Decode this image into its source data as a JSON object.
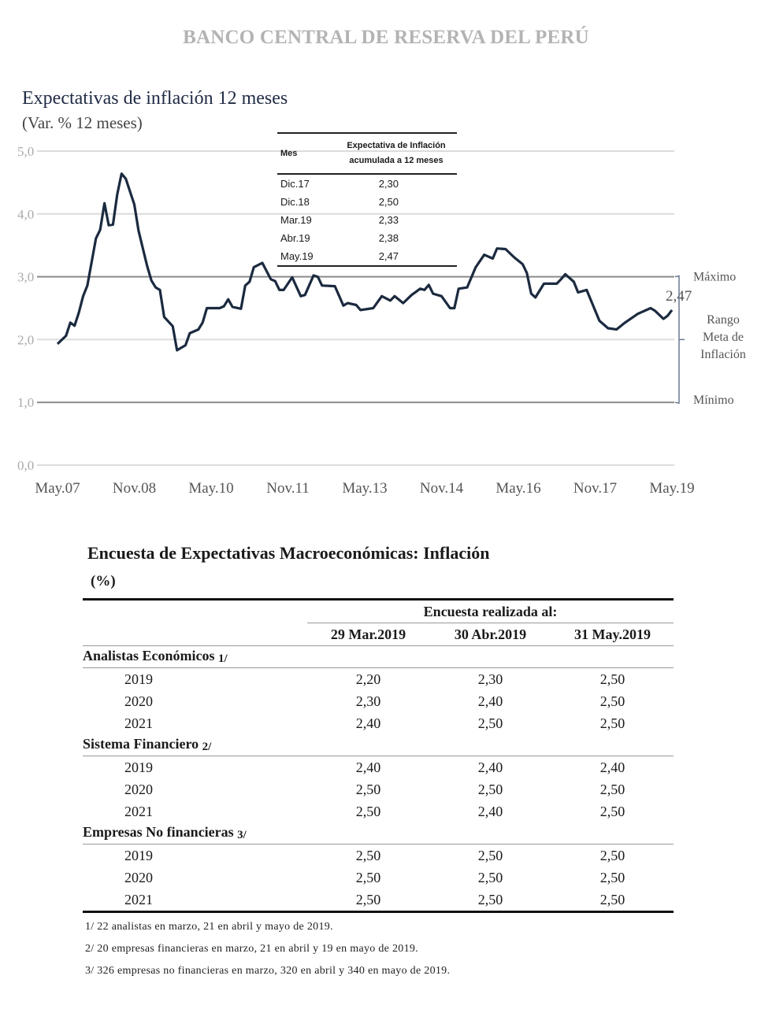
{
  "header": {
    "bank": "BANCO CENTRAL DE RESERVA DEL PERÚ"
  },
  "chart_data": {
    "type": "line",
    "title": "Expectativas de inflación 12 meses",
    "subtitle": "(Var. % 12 meses)",
    "ylim": [
      0,
      5
    ],
    "y_ticks": [
      "0,0",
      "1,0",
      "2,0",
      "3,0",
      "4,0",
      "5,0"
    ],
    "x_ticks": [
      "May.07",
      "Nov.08",
      "May.10",
      "Nov.11",
      "May.13",
      "Nov.14",
      "May.16",
      "Nov.17",
      "May.19"
    ],
    "x_tick_dates": [
      "2007-05",
      "2008-11",
      "2010-05",
      "2011-11",
      "2013-05",
      "2014-11",
      "2016-05",
      "2017-11",
      "2019-05"
    ],
    "xlim": [
      "2007-05",
      "2019-05"
    ],
    "grid": true,
    "target_range": {
      "min": 1.0,
      "max": 3.0,
      "max_label": "Máximo",
      "min_label": "Mínimo",
      "range_label": [
        "Rango",
        "Meta de",
        "Inflación"
      ]
    },
    "last_value_label": "2,47",
    "line_color": "#1b2a3f",
    "series": [
      {
        "x": [
          "2007-05",
          "2007-07",
          "2007-08",
          "2007-09",
          "2007-10",
          "2007-11",
          "2007-12",
          "2008-02",
          "2008-03",
          "2008-04",
          "2008-05",
          "2008-06",
          "2008-07",
          "2008-08",
          "2008-09",
          "2008-11",
          "2008-12",
          "2009-02",
          "2009-03",
          "2009-04",
          "2009-05",
          "2009-06",
          "2009-08",
          "2009-09",
          "2009-11",
          "2009-12",
          "2010-02",
          "2010-03",
          "2010-04",
          "2010-07",
          "2010-08",
          "2010-09",
          "2010-10",
          "2010-12",
          "2011-01",
          "2011-02",
          "2011-03",
          "2011-05",
          "2011-07",
          "2011-08",
          "2011-09",
          "2011-10",
          "2011-12",
          "2012-02",
          "2012-03",
          "2012-05",
          "2012-06",
          "2012-07",
          "2012-10",
          "2012-12",
          "2013-01",
          "2013-03",
          "2013-04",
          "2013-07",
          "2013-09",
          "2013-11",
          "2013-12",
          "2014-02",
          "2014-04",
          "2014-05",
          "2014-06",
          "2014-07",
          "2014-08",
          "2014-09",
          "2014-11",
          "2015-01",
          "2015-02",
          "2015-03",
          "2015-05",
          "2015-07",
          "2015-09",
          "2015-11",
          "2015-12",
          "2016-02",
          "2016-04",
          "2016-06",
          "2016-07",
          "2016-08",
          "2016-09",
          "2016-11",
          "2017-02",
          "2017-03",
          "2017-04",
          "2017-06",
          "2017-07",
          "2017-09",
          "2017-12",
          "2018-02",
          "2018-04",
          "2018-06",
          "2018-09",
          "2018-10",
          "2018-12",
          "2019-01",
          "2019-03",
          "2019-04",
          "2019-05"
        ],
        "y": [
          1.93,
          2.06,
          2.27,
          2.22,
          2.43,
          2.69,
          2.86,
          3.61,
          3.75,
          4.17,
          3.82,
          3.83,
          4.31,
          4.64,
          4.56,
          4.15,
          3.73,
          3.17,
          2.94,
          2.83,
          2.79,
          2.36,
          2.21,
          1.83,
          1.91,
          2.1,
          2.16,
          2.27,
          2.5,
          2.5,
          2.53,
          2.64,
          2.52,
          2.49,
          2.86,
          2.92,
          3.15,
          3.22,
          2.96,
          2.93,
          2.79,
          2.79,
          2.99,
          2.69,
          2.71,
          3.02,
          3.0,
          2.86,
          2.85,
          2.54,
          2.58,
          2.55,
          2.47,
          2.5,
          2.69,
          2.62,
          2.69,
          2.58,
          2.71,
          2.76,
          2.81,
          2.79,
          2.87,
          2.73,
          2.69,
          2.5,
          2.5,
          2.81,
          2.83,
          3.15,
          3.35,
          3.29,
          3.45,
          3.44,
          3.31,
          3.2,
          3.06,
          2.73,
          2.67,
          2.89,
          2.89,
          2.96,
          3.04,
          2.92,
          2.75,
          2.79,
          2.3,
          2.18,
          2.16,
          2.27,
          2.41,
          2.44,
          2.5,
          2.46,
          2.33,
          2.38,
          2.47
        ]
      }
    ]
  },
  "inset_table": {
    "col1": "Mes",
    "col2_line1": "Expectativa de Inflación",
    "col2_line2": "acumulada a 12 meses",
    "rows": [
      {
        "mes": "Dic.17",
        "valor": "2,30"
      },
      {
        "mes": "Dic.18",
        "valor": "2,50"
      },
      {
        "mes": "Mar.19",
        "valor": "2,33"
      },
      {
        "mes": "Abr.19",
        "valor": "2,38"
      },
      {
        "mes": "May.19",
        "valor": "2,47"
      }
    ]
  },
  "survey": {
    "title": "Encuesta de Expectativas Macroeconómicas: Inflación",
    "unit": "(%)",
    "super_header": "Encuesta realizada al:",
    "columns": [
      "29 Mar.2019",
      "30 Abr.2019",
      "31 May.2019"
    ],
    "groups": [
      {
        "name": "Analistas Económicos",
        "note": "1/",
        "rows": [
          {
            "year": "2019",
            "values": [
              "2,20",
              "2,30",
              "2,50"
            ]
          },
          {
            "year": "2020",
            "values": [
              "2,30",
              "2,40",
              "2,50"
            ]
          },
          {
            "year": "2021",
            "values": [
              "2,40",
              "2,50",
              "2,50"
            ]
          }
        ]
      },
      {
        "name": "Sistema Financiero",
        "note": "2/",
        "rows": [
          {
            "year": "2019",
            "values": [
              "2,40",
              "2,40",
              "2,40"
            ]
          },
          {
            "year": "2020",
            "values": [
              "2,50",
              "2,50",
              "2,50"
            ]
          },
          {
            "year": "2021",
            "values": [
              "2,50",
              "2,40",
              "2,50"
            ]
          }
        ]
      },
      {
        "name": "Empresas No financieras",
        "note": "3/",
        "rows": [
          {
            "year": "2019",
            "values": [
              "2,50",
              "2,50",
              "2,50"
            ]
          },
          {
            "year": "2020",
            "values": [
              "2,50",
              "2,50",
              "2,50"
            ]
          },
          {
            "year": "2021",
            "values": [
              "2,50",
              "2,50",
              "2,50"
            ]
          }
        ]
      }
    ],
    "footnotes": [
      "1/ 22 analistas en marzo, 21 en abril y mayo de 2019.",
      "2/ 20 empresas financieras en marzo, 21 en abril y 19 en mayo de 2019.",
      "3/ 326 empresas no financieras en marzo, 320 en abril y 340 en mayo de 2019."
    ]
  }
}
